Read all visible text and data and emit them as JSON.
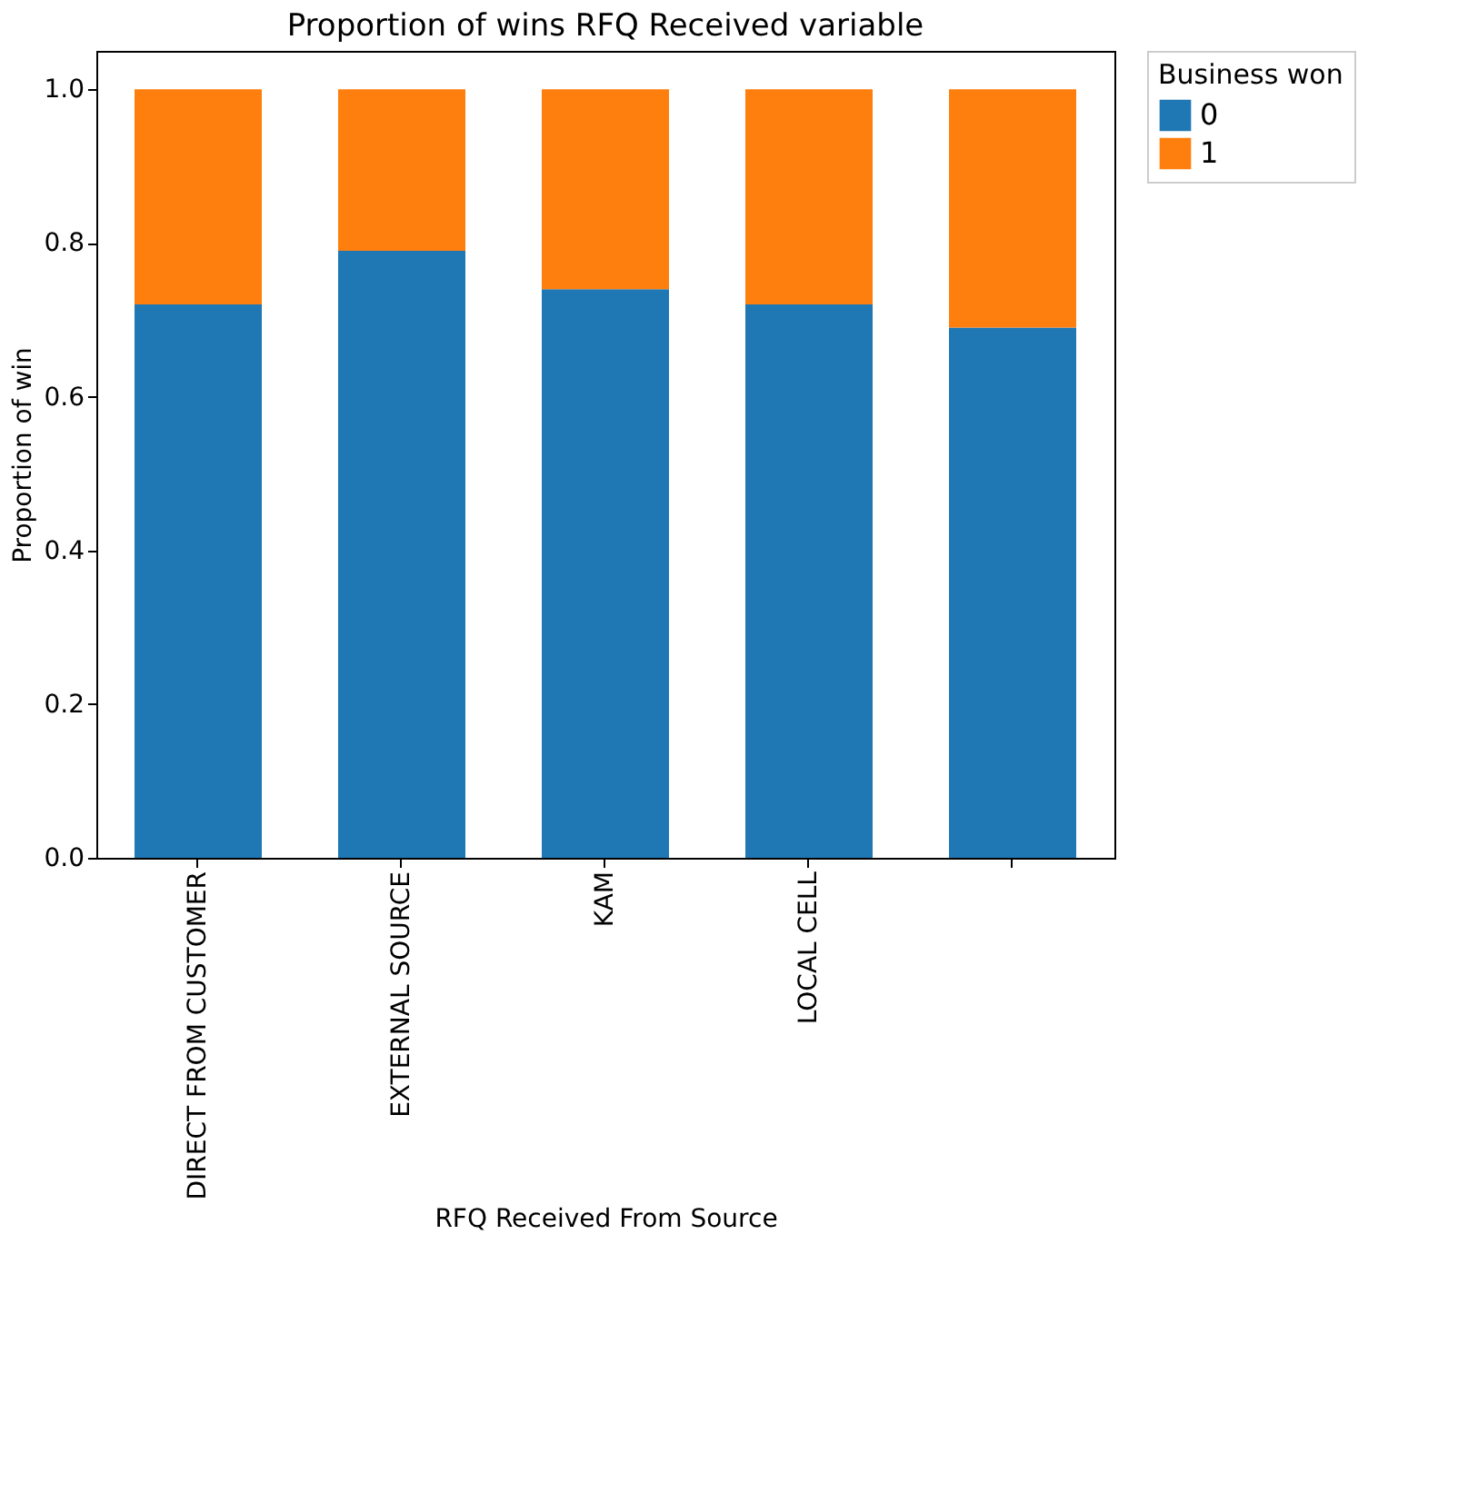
{
  "chart_data": {
    "type": "bar",
    "stacked": true,
    "title": "Proportion of wins RFQ Received variable",
    "xlabel": "RFQ Received From Source",
    "ylabel": "Proportion of win",
    "legend_title": "Business won",
    "categories": [
      "DIRECT FROM CUSTOMER",
      "EXTERNAL SOURCE",
      "KAM",
      "LOCAL CELL",
      null
    ],
    "series": [
      {
        "name": "0",
        "color": "#1f77b4",
        "values": [
          0.72,
          0.79,
          0.74,
          0.72,
          0.69
        ]
      },
      {
        "name": "1",
        "color": "#ff7f0e",
        "values": [
          0.28,
          0.21,
          0.26,
          0.28,
          0.31
        ]
      }
    ],
    "ylim": [
      0,
      1.05
    ],
    "yticks": [
      {
        "value": 0,
        "label": "0.0"
      },
      0.2,
      0.4,
      0.6,
      0.8,
      {
        "value": 1,
        "label": "1.0"
      }
    ],
    "grid": false,
    "legend": "top right"
  }
}
